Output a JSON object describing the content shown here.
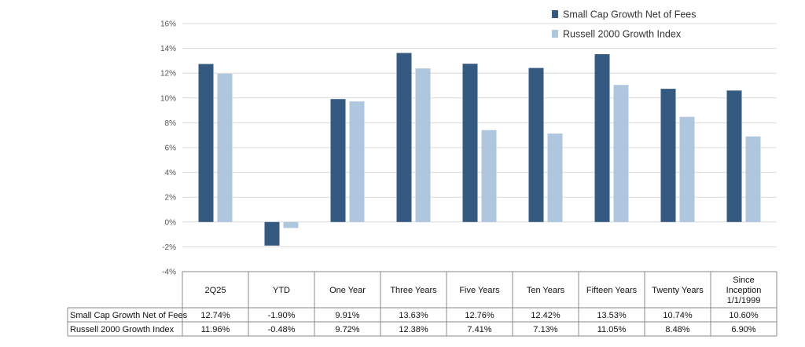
{
  "chart_data": {
    "type": "bar",
    "categories": [
      "2Q25",
      "YTD",
      "One Year",
      "Three Years",
      "Five Years",
      "Ten Years",
      "Fifteen Years",
      "Twenty Years",
      "Since Inception 1/1/1999"
    ],
    "category_lines": [
      [
        "2Q25"
      ],
      [
        "YTD"
      ],
      [
        "One Year"
      ],
      [
        "Three Years"
      ],
      [
        "Five Years"
      ],
      [
        "Ten Years"
      ],
      [
        "Fifteen Years"
      ],
      [
        "Twenty Years"
      ],
      [
        "Since",
        "Inception",
        "1/1/1999"
      ]
    ],
    "series": [
      {
        "name": "Small Cap Growth Net of Fees",
        "color": "#355a82",
        "values": [
          12.74,
          -1.9,
          9.91,
          13.63,
          12.76,
          12.42,
          13.53,
          10.74,
          10.6
        ],
        "labels": [
          "12.74%",
          "-1.90%",
          "9.91%",
          "13.63%",
          "12.76%",
          "12.42%",
          "13.53%",
          "10.74%",
          "10.60%"
        ]
      },
      {
        "name": "Russell 2000 Growth Index",
        "color": "#aec6de",
        "values": [
          11.96,
          -0.48,
          9.72,
          12.38,
          7.41,
          7.13,
          11.05,
          8.48,
          6.9
        ],
        "labels": [
          "11.96%",
          "-0.48%",
          "9.72%",
          "12.38%",
          "7.41%",
          "7.13%",
          "11.05%",
          "8.48%",
          "6.90%"
        ]
      }
    ],
    "yticks": [
      "-4%",
      "-2%",
      "0%",
      "2%",
      "4%",
      "6%",
      "8%",
      "10%",
      "12%",
      "14%",
      "16%"
    ],
    "ylim": [
      -4,
      16
    ],
    "grid": true,
    "legend_position": "top-right",
    "data_table": true
  }
}
